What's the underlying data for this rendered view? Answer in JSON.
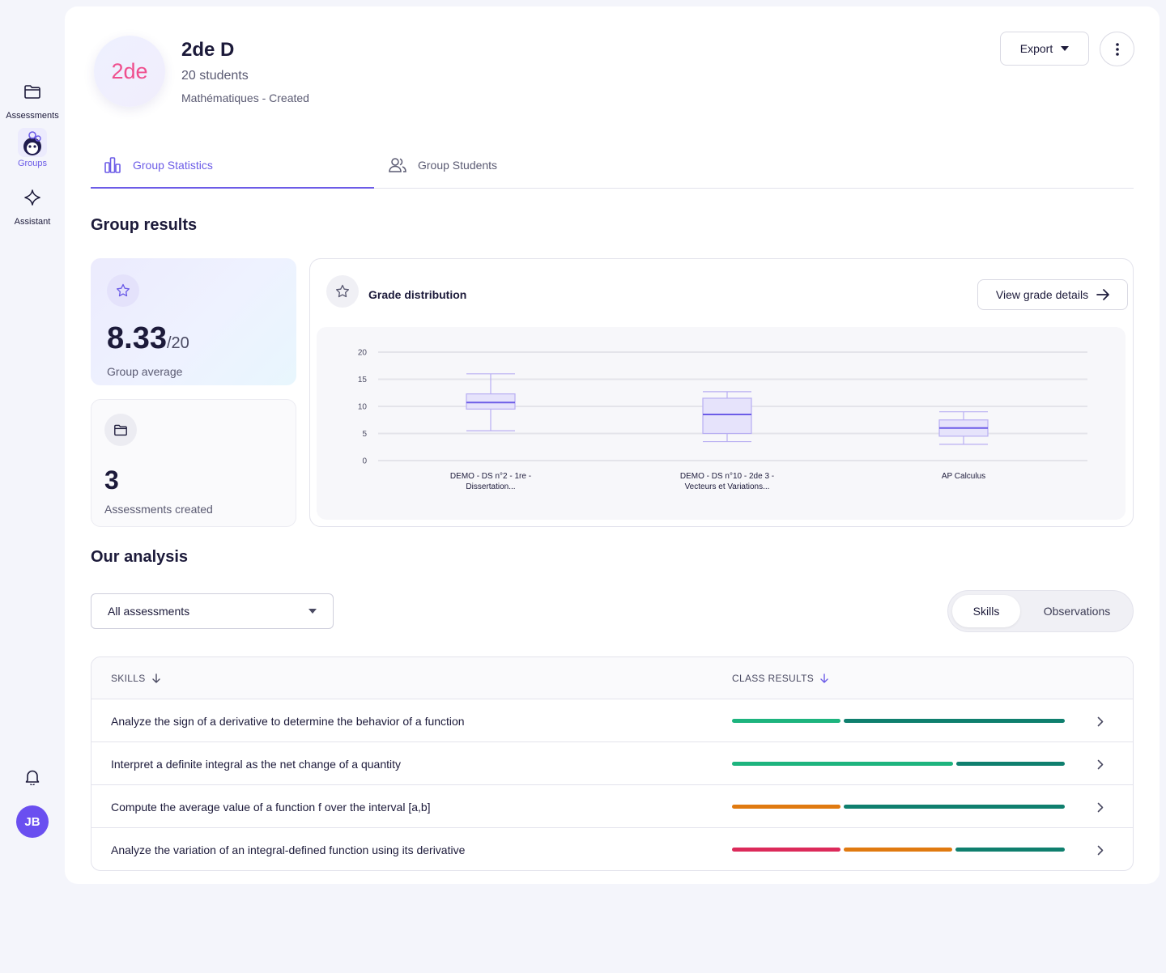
{
  "sidebar": {
    "items": [
      {
        "label": "Assessments",
        "icon": "folder-icon"
      },
      {
        "label": "Groups",
        "icon": "groups-icon"
      },
      {
        "label": "Assistant",
        "icon": "sparkle-icon"
      }
    ],
    "active": "Groups",
    "user_initials": "JB"
  },
  "header": {
    "badge": "2de",
    "title": "2de D",
    "students": "20 students",
    "subtitle": "Mathématiques - Created",
    "export_label": "Export"
  },
  "tabs": [
    {
      "label": "Group Statistics",
      "active": true
    },
    {
      "label": "Group Students",
      "active": false
    }
  ],
  "group_results": {
    "title": "Group results",
    "average_value": "8.33",
    "average_suffix": "/20",
    "average_label": "Group average",
    "created_value": "3",
    "created_label": "Assessments created"
  },
  "distribution": {
    "title": "Grade distribution",
    "view_label": "View grade details"
  },
  "chart_data": {
    "type": "boxplot",
    "ylim": [
      0,
      20
    ],
    "yticks": [
      0,
      5,
      10,
      15,
      20
    ],
    "grid": true,
    "categories": [
      [
        "DEMO - DS n°2 - 1re -",
        "Dissertation..."
      ],
      [
        "DEMO - DS n°10 - 2de 3 -",
        "Vecteurs et Variations..."
      ],
      [
        "AP Calculus"
      ]
    ],
    "boxes": [
      {
        "min": 5.5,
        "q1": 9.5,
        "median": 10.7,
        "q3": 12.3,
        "max": 16
      },
      {
        "min": 3.5,
        "q1": 5,
        "median": 8.5,
        "q3": 11.5,
        "max": 12.7
      },
      {
        "min": 3,
        "q1": 4.5,
        "median": 6,
        "q3": 7.5,
        "max": 9
      }
    ],
    "colors": {
      "box_fill": "#e6e3fb",
      "box_stroke": "#b8aef2",
      "median": "#6c5ce7",
      "grid": "#e4e4ea"
    }
  },
  "analysis": {
    "title": "Our analysis",
    "filter_value": "All assessments",
    "toggle": [
      "Skills",
      "Observations"
    ],
    "toggle_active": "Skills",
    "columns": {
      "skills": "SKILLS",
      "results": "CLASS RESULTS"
    },
    "rows": [
      {
        "skill": "Analyze the sign of a derivative to determine the behavior of a function",
        "segments": [
          {
            "color": "#1db47e",
            "share": 0.33
          },
          {
            "color": "#0f7f6e",
            "share": 0.67
          }
        ]
      },
      {
        "skill": "Interpret a definite integral as the net change of a quantity",
        "segments": [
          {
            "color": "#1db47e",
            "share": 0.67
          },
          {
            "color": "#0f7f6e",
            "share": 0.33
          }
        ]
      },
      {
        "skill": "Compute the average value of a function f over the interval [a,b]",
        "segments": [
          {
            "color": "#e07a10",
            "share": 0.33
          },
          {
            "color": "#0f7f6e",
            "share": 0.67
          }
        ]
      },
      {
        "skill": "Analyze the variation of an integral-defined function using its derivative",
        "segments": [
          {
            "color": "#dc2a5a",
            "share": 0.333
          },
          {
            "color": "#e07a10",
            "share": 0.333
          },
          {
            "color": "#0f7f6e",
            "share": 0.334
          }
        ]
      }
    ]
  }
}
